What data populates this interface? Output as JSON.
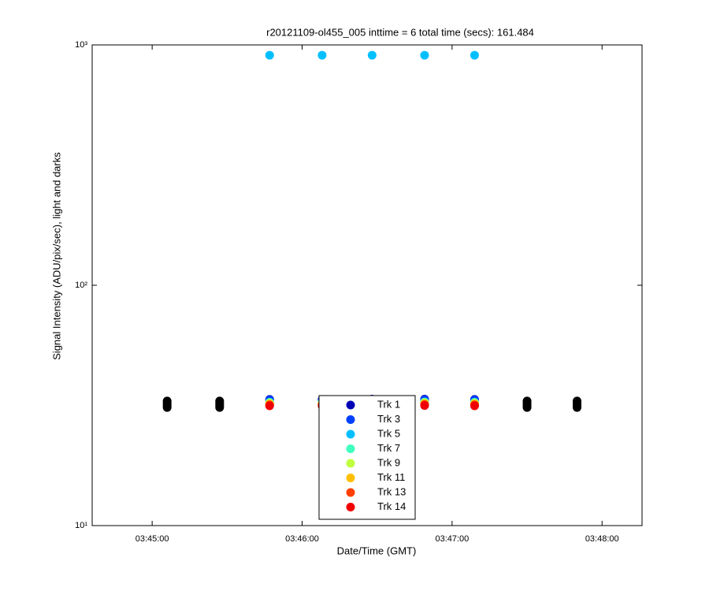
{
  "chart_data": {
    "type": "scatter",
    "title": "r20121109-ol455_005 inttime = 6 total time (secs): 161.484",
    "x_label": "Date/Time (GMT)",
    "y_label": "Signal Intensity (ADU/pix/sec), light and darks",
    "y_scale": "log",
    "xlim": [
      "03:44:36",
      "03:48:16"
    ],
    "xticks": [
      "03:45:00",
      "03:46:00",
      "03:47:00",
      "03:48:00"
    ],
    "ylim": [
      10,
      1000
    ],
    "yticks": [
      {
        "value": 10,
        "label": "10¹"
      },
      {
        "value": 100,
        "label": "10²"
      },
      {
        "value": 1000,
        "label": "10³"
      }
    ],
    "grid": false,
    "legend_location": "lower center",
    "series": [
      {
        "color": "#000000",
        "x": [
          "03:45:06",
          "03:45:06",
          "03:45:06",
          "03:45:06",
          "03:45:06",
          "03:45:27",
          "03:45:27",
          "03:45:27",
          "03:45:27",
          "03:45:27",
          "03:47:30",
          "03:47:30",
          "03:47:30",
          "03:47:30",
          "03:47:30",
          "03:47:50",
          "03:47:50",
          "03:47:50",
          "03:47:50",
          "03:47:50"
        ],
        "values": [
          31,
          31.5,
          32,
          32.5,
          33,
          31,
          31.5,
          32,
          32.5,
          33,
          31,
          31.5,
          32,
          32.5,
          33,
          31,
          31.5,
          32,
          32.5,
          33
        ]
      },
      {
        "name": "Trk 1",
        "color": "#0000b4",
        "x": [
          "03:45:47",
          "03:46:08",
          "03:46:28",
          "03:46:49",
          "03:47:09"
        ],
        "values": [
          33.5,
          33.5,
          33.6,
          33.6,
          33.5
        ]
      },
      {
        "name": "Trk 3",
        "color": "#0040ff",
        "x": [
          "03:45:47",
          "03:46:08",
          "03:46:28",
          "03:46:49",
          "03:47:09"
        ],
        "values": [
          33.3,
          33.3,
          33.4,
          33.4,
          33.3
        ]
      },
      {
        "name": "Trk 5",
        "color": "#00bfff",
        "x": [
          "03:45:47",
          "03:46:08",
          "03:46:28",
          "03:46:49",
          "03:47:09"
        ],
        "values": [
          906,
          906,
          906,
          906,
          906
        ]
      },
      {
        "name": "Trk 7",
        "color": "#40ffbf",
        "x": [
          "03:45:47",
          "03:46:08",
          "03:46:28",
          "03:46:49",
          "03:47:09"
        ],
        "values": [
          32.6,
          32.6,
          32.7,
          32.7,
          32.6
        ]
      },
      {
        "name": "Trk 9",
        "color": "#bfff40",
        "x": [
          "03:45:47",
          "03:46:08",
          "03:46:28",
          "03:46:49",
          "03:47:09"
        ],
        "values": [
          32.3,
          32.3,
          32.4,
          32.4,
          32.3
        ]
      },
      {
        "name": "Trk 11",
        "color": "#ffbf00",
        "x": [
          "03:45:47",
          "03:46:08",
          "03:46:28",
          "03:46:49",
          "03:47:09"
        ],
        "values": [
          32,
          32,
          32.1,
          32.1,
          32
        ]
      },
      {
        "name": "Trk 13",
        "color": "#ff4000",
        "x": [
          "03:45:47",
          "03:46:08",
          "03:46:28",
          "03:46:49",
          "03:47:09"
        ],
        "values": [
          31.8,
          31.8,
          31.9,
          31.9,
          31.8
        ]
      },
      {
        "name": "Trk 14",
        "color": "#f00000",
        "x": [
          "03:45:47",
          "03:46:08",
          "03:46:28",
          "03:46:49",
          "03:47:09"
        ],
        "values": [
          31.5,
          31.5,
          31.6,
          31.6,
          31.5
        ]
      }
    ]
  }
}
